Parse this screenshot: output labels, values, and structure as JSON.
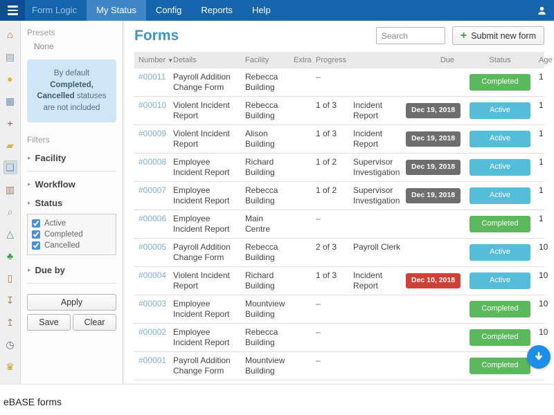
{
  "nav": {
    "brand": "Form Logic",
    "items": [
      {
        "label": "My Status",
        "active": true
      },
      {
        "label": "Config",
        "active": false
      },
      {
        "label": "Reports",
        "active": false
      },
      {
        "label": "Help",
        "active": false
      }
    ]
  },
  "sidebar_icons": [
    {
      "name": "home-icon",
      "glyph": "⌂",
      "color": "#b06a3c",
      "selected": false
    },
    {
      "name": "documents-icon",
      "glyph": "▤",
      "color": "#8d9aa5",
      "selected": false
    },
    {
      "name": "hardhat-icon",
      "glyph": "●",
      "color": "#e2b63e",
      "selected": false
    },
    {
      "name": "devices-icon",
      "glyph": "▦",
      "color": "#7191b5",
      "selected": false
    },
    {
      "name": "first-aid-icon",
      "glyph": "+",
      "color": "#cf3c35",
      "selected": false
    },
    {
      "name": "folder-icon",
      "glyph": "▰",
      "color": "#d9b45f",
      "selected": false
    },
    {
      "name": "forms-icon",
      "glyph": "❏",
      "color": "#5b9bd5",
      "selected": true
    },
    {
      "name": "clipboard-icon",
      "glyph": "▥",
      "color": "#9b8468",
      "selected": false
    },
    {
      "name": "search-document-icon",
      "glyph": "⌕",
      "color": "#8d9aa5",
      "selected": false
    },
    {
      "name": "lab-icon",
      "glyph": "△",
      "color": "#56a08a",
      "selected": false
    },
    {
      "name": "puzzle-icon",
      "glyph": "♣",
      "color": "#3f9d3f",
      "selected": false
    },
    {
      "name": "book-icon",
      "glyph": "▯",
      "color": "#b08040",
      "selected": false
    },
    {
      "name": "import-box-icon",
      "glyph": "↧",
      "color": "#b08950",
      "selected": false
    },
    {
      "name": "export-box-icon",
      "glyph": "↥",
      "color": "#b08950",
      "selected": false
    },
    {
      "name": "clock-icon",
      "glyph": "◷",
      "color": "#5a6b7a",
      "selected": false
    },
    {
      "name": "award-icon",
      "glyph": "♛",
      "color": "#c9a227",
      "selected": false
    }
  ],
  "icons": {
    "sort_desc": "▼",
    "chevron": "▸",
    "plus": "+"
  },
  "filters": {
    "presets_label": "Presets",
    "preset_value": "None",
    "notice": {
      "pre": "By default ",
      "bold": "Completed, Cancelled",
      "post": " statuses are not included"
    },
    "filters_label": "Filters",
    "groups": [
      {
        "label": "Facility",
        "divider_after": true
      },
      {
        "label": "Workflow",
        "divider_after": false
      },
      {
        "label": "Status",
        "divider_after": false,
        "checkboxes": [
          {
            "label": "Active",
            "checked": true
          },
          {
            "label": "Completed",
            "checked": true
          },
          {
            "label": "Cancelled",
            "checked": true
          }
        ]
      },
      {
        "label": "Due by",
        "divider_after": true
      }
    ],
    "apply_label": "Apply",
    "save_label": "Save",
    "clear_label": "Clear"
  },
  "main": {
    "title": "Forms",
    "search_placeholder": "Search",
    "submit_label": "Submit new form",
    "table": {
      "columns": [
        "Number",
        "Details",
        "Facility",
        "Extra",
        "Progress",
        "Due",
        "Status",
        "Age"
      ],
      "rows": [
        {
          "number": "#00011",
          "details": "Payroll Addition Change Form",
          "facility": "Rebecca Building",
          "progress": "–",
          "step": "",
          "due": "",
          "overdue": false,
          "status": "Completed",
          "age": "1"
        },
        {
          "number": "#00010",
          "details": "Violent Incident Report",
          "facility": "Rebecca Building",
          "progress": "1 of 3",
          "step": "Incident Report",
          "due": "Dec 19, 2018",
          "overdue": false,
          "status": "Active",
          "age": "1"
        },
        {
          "number": "#00009",
          "details": "Violent Incident Report",
          "facility": "Alison Building",
          "progress": "1 of 3",
          "step": "Incident Report",
          "due": "Dec 19, 2018",
          "overdue": false,
          "status": "Active",
          "age": "1"
        },
        {
          "number": "#00008",
          "details": "Employee Incident Report",
          "facility": "Richard Building",
          "progress": "1 of 2",
          "step": "Supervisor Investigation",
          "due": "Dec 19, 2018",
          "overdue": false,
          "status": "Active",
          "age": "1"
        },
        {
          "number": "#00007",
          "details": "Employee Incident Report",
          "facility": "Rebecca Building",
          "progress": "1 of 2",
          "step": "Supervisor Investigation",
          "due": "Dec 19, 2018",
          "overdue": false,
          "status": "Active",
          "age": "1"
        },
        {
          "number": "#00006",
          "details": "Employee Incident Report",
          "facility": "Main Centre",
          "progress": "–",
          "step": "",
          "due": "",
          "overdue": false,
          "status": "Completed",
          "age": "1"
        },
        {
          "number": "#00005",
          "details": "Payroll Addition Change Form",
          "facility": "Rebecca Building",
          "progress": "2 of 3",
          "step": "Payroll Clerk",
          "due": "",
          "overdue": false,
          "status": "Active",
          "age": "10"
        },
        {
          "number": "#00004",
          "details": "Violent Incident Report",
          "facility": "Richard Building",
          "progress": "1 of 3",
          "step": "Incident Report",
          "due": "Dec 10, 2018",
          "overdue": true,
          "status": "Active",
          "age": "10"
        },
        {
          "number": "#00003",
          "details": "Employee Incident Report",
          "facility": "Mountview Building",
          "progress": "–",
          "step": "",
          "due": "",
          "overdue": false,
          "status": "Completed",
          "age": "10"
        },
        {
          "number": "#00002",
          "details": "Employee Incident Report",
          "facility": "Rebecca Building",
          "progress": "–",
          "step": "",
          "due": "",
          "overdue": false,
          "status": "Completed",
          "age": "10"
        },
        {
          "number": "#00001",
          "details": "Payroll Addition Change Form",
          "facility": "Mountview Building",
          "progress": "–",
          "step": "",
          "due": "",
          "overdue": false,
          "status": "Completed",
          "age": ""
        }
      ]
    }
  },
  "footer": {
    "caption": "eBASE forms"
  },
  "colors": {
    "nav_bg": "#1565ad",
    "nav_active_tab": "#3f86c6",
    "hamburger_bg": "#0e4e93",
    "title_blue": "#4193c6",
    "link_blue": "#7fb0d2",
    "badge_completed": "#5cb85c",
    "badge_active": "#55bdda",
    "badge_due": "#6e6e6e",
    "badge_overdue": "#cf4037",
    "notice_bg": "#cfe6f6",
    "scroll_button": "#1d8fe8"
  }
}
